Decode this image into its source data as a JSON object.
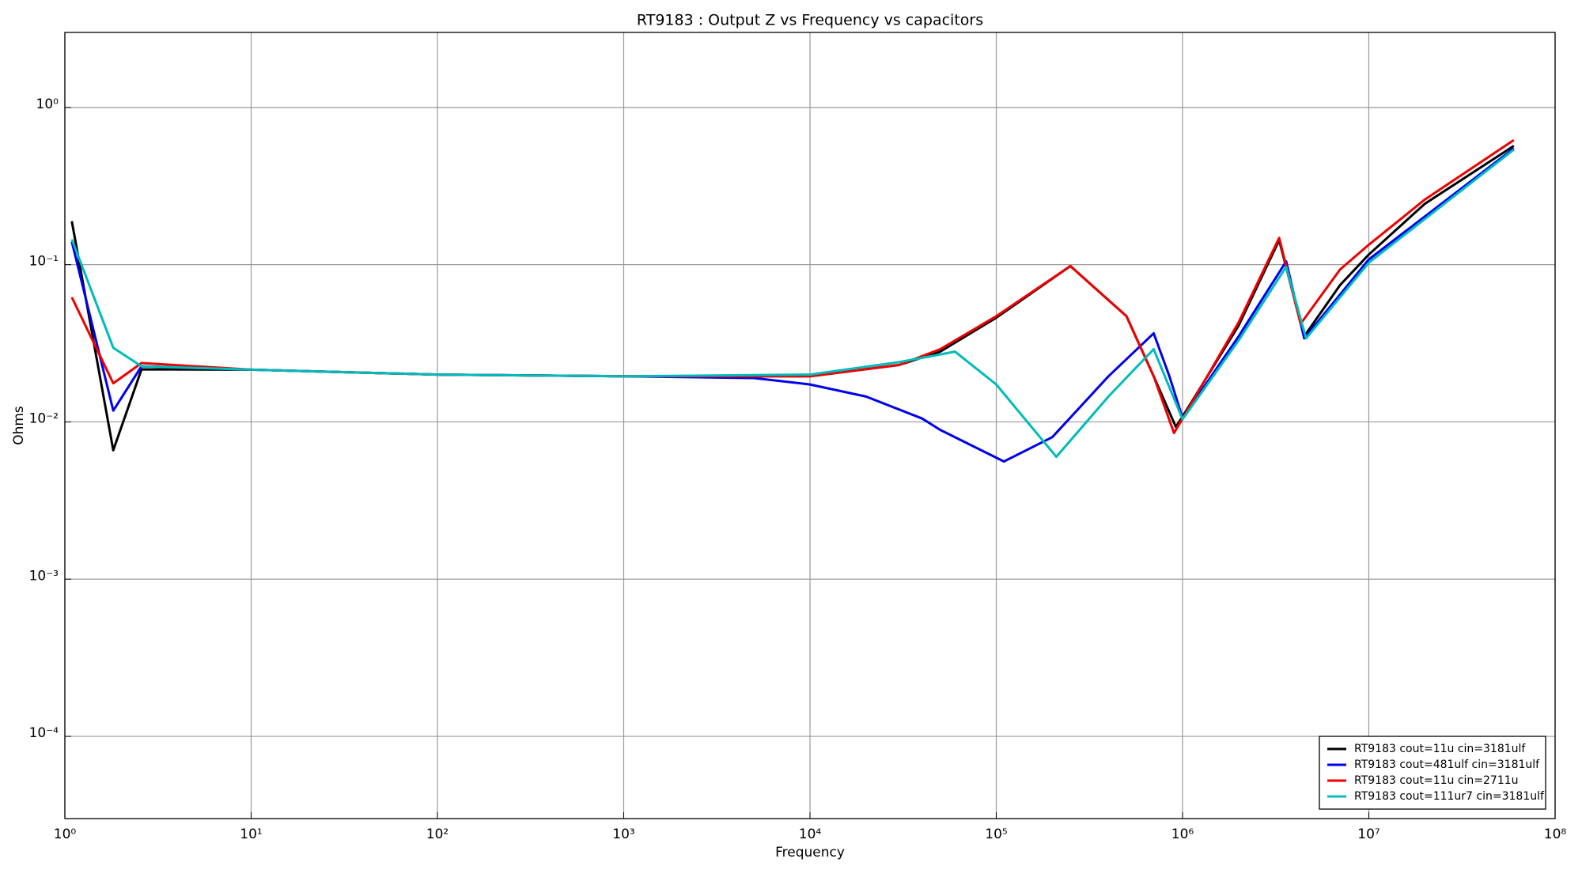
{
  "chart_data": {
    "type": "line",
    "title": "RT9183 : Output Z vs Frequency vs capacitors",
    "xlabel": "Frequency",
    "ylabel": "Ohms",
    "xscale": "log",
    "yscale": "log",
    "xlim": [
      1,
      100000000
    ],
    "ylim": [
      3e-05,
      3
    ],
    "xticks": [
      {
        "value": 1,
        "label": "10⁰"
      },
      {
        "value": 10,
        "label": "10¹"
      },
      {
        "value": 100,
        "label": "10²"
      },
      {
        "value": 1000,
        "label": "10³"
      },
      {
        "value": 10000,
        "label": "10⁴"
      },
      {
        "value": 100000,
        "label": "10⁵"
      },
      {
        "value": 1000000,
        "label": "10⁶"
      },
      {
        "value": 10000000,
        "label": "10⁷"
      },
      {
        "value": 100000000,
        "label": "10⁸"
      }
    ],
    "yticks": [
      {
        "value": 0.0001,
        "label": "10⁻⁴"
      },
      {
        "value": 0.001,
        "label": "10⁻³"
      },
      {
        "value": 0.01,
        "label": "10⁻²"
      },
      {
        "value": 0.1,
        "label": "10⁻¹"
      },
      {
        "value": 1,
        "label": "10⁰"
      }
    ],
    "grid": true,
    "legend": "lower right",
    "series": [
      {
        "name": "RT9183 cout=11u cin=3181ulf",
        "color": "#000000",
        "x": [
          1.09,
          1.82,
          2.58,
          10,
          100,
          1000,
          10000,
          30000,
          50000,
          100000,
          250000,
          500000,
          700000,
          920000,
          1000000,
          2000000,
          3300000,
          4500000,
          7000000,
          10000000,
          20000000,
          60000000
        ],
        "values": [
          0.189,
          0.0066,
          0.0216,
          0.0215,
          0.02,
          0.0195,
          0.0195,
          0.023,
          0.028,
          0.046,
          0.098,
          0.047,
          0.0195,
          0.0093,
          0.0108,
          0.041,
          0.143,
          0.035,
          0.074,
          0.116,
          0.244,
          0.57
        ]
      },
      {
        "name": "RT9183 cout=481ulf cin=3181ulf",
        "color": "#0000ee",
        "x": [
          1.09,
          1.82,
          2.58,
          10,
          100,
          1000,
          5000,
          10000,
          20000,
          40000,
          50000,
          110000,
          200000,
          400000,
          700000,
          850000,
          1000000,
          2000000,
          3600000,
          4500000,
          10000000,
          60000000
        ],
        "values": [
          0.14,
          0.0118,
          0.0226,
          0.0215,
          0.02,
          0.0195,
          0.019,
          0.0173,
          0.0145,
          0.0105,
          0.0089,
          0.0056,
          0.008,
          0.0195,
          0.0366,
          0.0195,
          0.0106,
          0.035,
          0.105,
          0.034,
          0.108,
          0.55
        ]
      },
      {
        "name": "RT9183 cout=11u cin=2711u",
        "color": "#ee0000",
        "x": [
          1.09,
          1.82,
          2.58,
          10,
          100,
          1000,
          10000,
          30000,
          50000,
          100000,
          250000,
          500000,
          700000,
          900000,
          1000000,
          2000000,
          3300000,
          4300000,
          7000000,
          10000000,
          20000000,
          60000000
        ],
        "values": [
          0.062,
          0.0176,
          0.0237,
          0.0215,
          0.02,
          0.0195,
          0.0195,
          0.023,
          0.029,
          0.047,
          0.098,
          0.047,
          0.0195,
          0.0085,
          0.0105,
          0.043,
          0.148,
          0.042,
          0.093,
          0.134,
          0.26,
          0.62
        ]
      },
      {
        "name": "RT9183 cout=111ur7 cin=3181ulf",
        "color": "#00bbbb",
        "x": [
          1.09,
          1.82,
          2.58,
          10,
          100,
          1000,
          10000,
          30000,
          60000,
          100000,
          210000,
          400000,
          700000,
          1000000,
          2000000,
          3600000,
          4600000,
          10000000,
          60000000
        ],
        "values": [
          0.145,
          0.0296,
          0.0226,
          0.0215,
          0.02,
          0.0195,
          0.02,
          0.024,
          0.028,
          0.0173,
          0.006,
          0.0145,
          0.029,
          0.0104,
          0.033,
          0.097,
          0.034,
          0.103,
          0.54
        ]
      }
    ]
  }
}
